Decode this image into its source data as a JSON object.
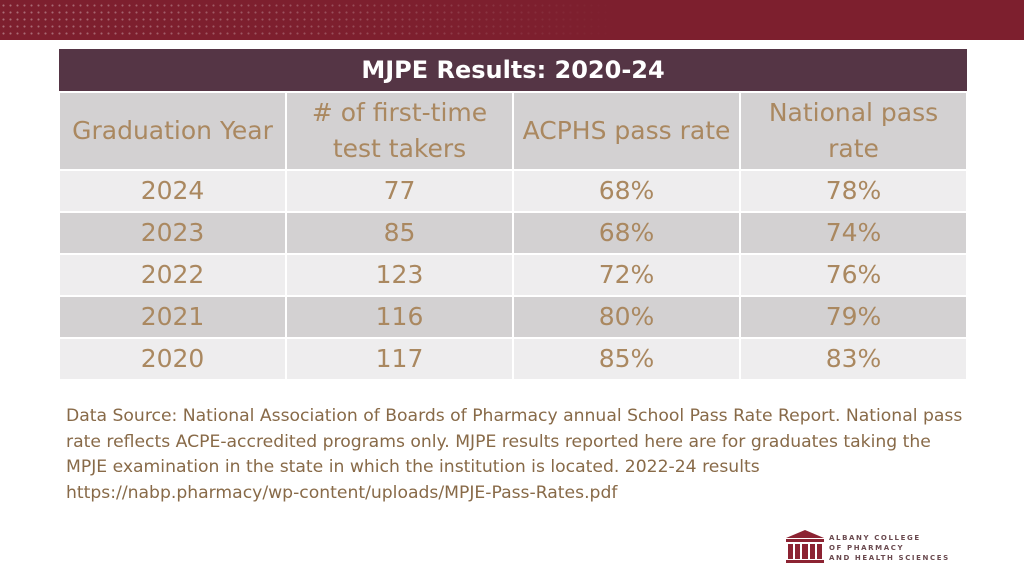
{
  "table": {
    "title": "MJPE Results: 2020-24",
    "headers": [
      "Graduation Year",
      "# of first-time test takers",
      "ACPHS pass rate",
      "National pass rate"
    ],
    "rows": [
      [
        "2024",
        "77",
        "68%",
        "78%"
      ],
      [
        "2023",
        "85",
        "68%",
        "74%"
      ],
      [
        "2022",
        "123",
        "72%",
        "76%"
      ],
      [
        "2021",
        "116",
        "80%",
        "79%"
      ],
      [
        "2020",
        "117",
        "85%",
        "83%"
      ]
    ]
  },
  "footnote": "Data Source: National Association of Boards of Pharmacy annual School Pass Rate Report. National pass rate reflects ACPE-accredited programs only. MJPE results reported here are for graduates taking the MPJE examination in the state in which the institution is located. 2022-24 results https://nabp.pharmacy/wp-content/uploads/MPJE-Pass-Rates.pdf",
  "logo": {
    "line1": "ALBANY COLLEGE",
    "line2": "OF PHARMACY",
    "line3": "AND HEALTH SCIENCES"
  },
  "colors": {
    "banner": "#7d1f2e",
    "table_title_bg": "#553545",
    "cell_text": "#aa8860",
    "row_light": "#eeedee",
    "row_dark": "#d3d1d2",
    "footnote_text": "#886a48",
    "logo_mark": "#8c2332"
  }
}
